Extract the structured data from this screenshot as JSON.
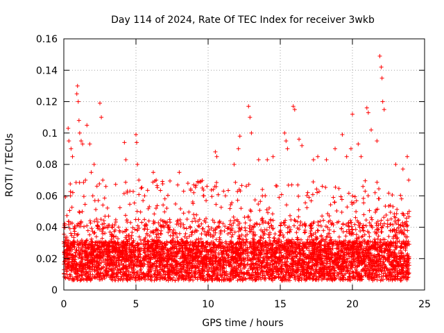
{
  "chart_data": {
    "type": "scatter",
    "title": "Day 114 of 2024, Rate Of TEC Index for receiver 3wkb",
    "xlabel": "GPS time / hours",
    "ylabel": "ROTI / TECUs",
    "xlim": [
      0,
      25
    ],
    "ylim": [
      0,
      0.16
    ],
    "xticks": [
      0,
      5,
      10,
      15,
      20,
      25
    ],
    "xtick_labels": [
      "0",
      "5",
      "10",
      "15",
      "20",
      "25"
    ],
    "yticks": [
      0,
      0.02,
      0.04,
      0.06,
      0.08,
      0.1,
      0.12,
      0.14,
      0.16
    ],
    "ytick_labels": [
      "0",
      "0.02",
      "0.04",
      "0.06",
      "0.08",
      "0.1",
      "0.12",
      "0.14",
      "0.16"
    ],
    "grid": true,
    "marker": "+",
    "series": [
      {
        "name": "ROTI",
        "color": "#ff0000",
        "x": [
          0.3,
          0.35,
          0.5,
          0.6,
          0.9,
          0.95,
          1.0,
          1.05,
          1.1,
          1.2,
          1.3,
          1.5,
          1.6,
          1.8,
          1.9,
          2.1,
          2.5,
          2.6,
          2.7,
          4.2,
          4.3,
          4.4,
          5.0,
          5.05,
          5.1,
          5.2,
          5.6,
          6.2,
          6.4,
          8.0,
          9.6,
          9.7,
          10.5,
          10.6,
          11.2,
          11.8,
          12.1,
          12.2,
          12.8,
          12.9,
          13.0,
          13.5,
          14.1,
          14.5,
          15.3,
          15.4,
          15.5,
          15.9,
          16.0,
          16.3,
          16.5,
          17.3,
          17.6,
          18.2,
          18.8,
          19.3,
          19.6,
          19.9,
          20.0,
          20.4,
          20.6,
          21.0,
          21.1,
          21.3,
          21.7,
          21.9,
          22.0,
          22.05,
          22.1,
          22.2,
          23.0,
          23.5,
          23.8,
          23.9
        ],
        "y": [
          0.103,
          0.095,
          0.09,
          0.085,
          0.125,
          0.13,
          0.12,
          0.108,
          0.1,
          0.095,
          0.093,
          0.07,
          0.105,
          0.093,
          0.075,
          0.08,
          0.119,
          0.11,
          0.07,
          0.094,
          0.083,
          0.063,
          0.099,
          0.094,
          0.08,
          0.07,
          0.06,
          0.075,
          0.07,
          0.075,
          0.065,
          0.06,
          0.088,
          0.085,
          0.06,
          0.08,
          0.09,
          0.098,
          0.117,
          0.11,
          0.1,
          0.083,
          0.083,
          0.085,
          0.1,
          0.095,
          0.09,
          0.117,
          0.115,
          0.096,
          0.092,
          0.083,
          0.085,
          0.083,
          0.09,
          0.099,
          0.085,
          0.09,
          0.112,
          0.093,
          0.085,
          0.116,
          0.113,
          0.102,
          0.095,
          0.149,
          0.142,
          0.135,
          0.12,
          0.115,
          0.08,
          0.077,
          0.085,
          0.07
        ],
        "bulk_note": "dense band of points between about 0.005 and 0.05 across 0-24 h"
      }
    ]
  }
}
